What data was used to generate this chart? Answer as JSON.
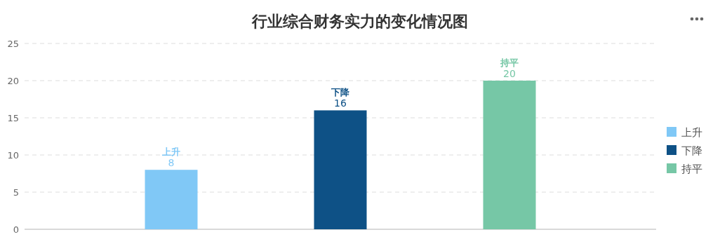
{
  "chart_data": {
    "type": "bar",
    "title": "行业综合财务实力的变化情况图",
    "categories": [
      null
    ],
    "series": [
      {
        "name": "上升",
        "color": "#80c8f6",
        "values": [
          8
        ]
      },
      {
        "name": "下降",
        "color": "#0e5186",
        "values": [
          16
        ]
      },
      {
        "name": "持平",
        "color": "#76c7a6",
        "values": [
          20
        ]
      }
    ],
    "ylim": [
      0,
      25
    ],
    "yticks": [
      0,
      5,
      10,
      15,
      20,
      25
    ],
    "grid": "y",
    "legend": "right",
    "data_labels": true
  }
}
